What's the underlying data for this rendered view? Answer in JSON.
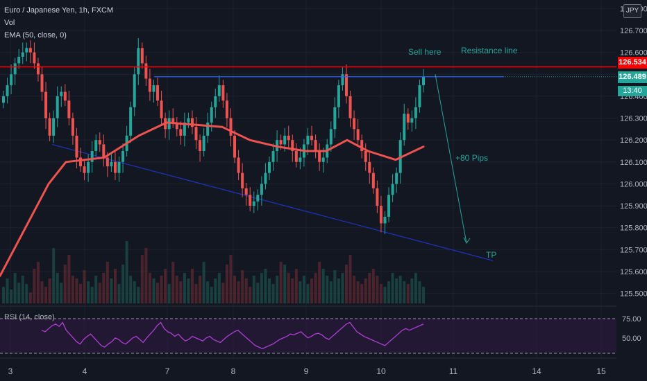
{
  "header": {
    "symbol": "Euro / Japanese Yen, 1h, FXCM",
    "indicator_vol": "Vol",
    "indicator_ema": "EMA (50, close, 0)"
  },
  "currency_badge": "JPY",
  "annotations": {
    "sell_here": "Sell here",
    "resistance": "Resistance line",
    "pips": "+80 Pips",
    "tp": "TP"
  },
  "price_tags": {
    "red_line": "126.534",
    "last": "126.489",
    "countdown": "13:40"
  },
  "rsi_legend": "RSI (14, close)",
  "colors": {
    "background": "#131722",
    "up": "#26a69a",
    "down": "#ef5350",
    "ema": "#ef5350",
    "red_line": "#ff0000",
    "resistance": "#2962ff",
    "support": "#2130b8",
    "rsi": "#b03fd6",
    "annotation": "#26a69a"
  },
  "chart_data": {
    "type": "candlestick",
    "y_ticks": [
      "125.500",
      "125.600",
      "125.700",
      "125.800",
      "125.900",
      "126.000",
      "126.100",
      "126.200",
      "126.300",
      "126.400",
      "126.500",
      "126.600",
      "126.700",
      "126.800"
    ],
    "x_ticks": [
      "3",
      "4",
      "7",
      "8",
      "9",
      "10",
      "11",
      "14",
      "15"
    ],
    "rsi_ticks": [
      "75.00",
      "50.00"
    ],
    "ylim": [
      125.48,
      126.82
    ],
    "horizontal_line": 126.534,
    "resistance_level": 126.489,
    "closes": [
      126.4,
      126.45,
      126.5,
      126.55,
      126.58,
      126.6,
      126.62,
      126.6,
      126.55,
      126.5,
      126.42,
      126.3,
      126.22,
      126.3,
      126.4,
      126.42,
      126.38,
      126.3,
      126.22,
      126.12,
      126.08,
      126.05,
      126.1,
      126.15,
      126.2,
      126.18,
      126.12,
      126.08,
      126.1,
      126.05,
      126.1,
      126.15,
      126.22,
      126.35,
      126.5,
      126.62,
      126.55,
      126.48,
      126.42,
      126.45,
      126.38,
      126.3,
      126.25,
      126.3,
      126.28,
      126.25,
      126.22,
      126.28,
      126.3,
      126.26,
      126.2,
      126.15,
      126.22,
      126.28,
      126.35,
      126.4,
      126.45,
      126.38,
      126.3,
      126.22,
      126.12,
      126.05,
      125.98,
      125.95,
      125.9,
      125.92,
      125.95,
      126.0,
      126.05,
      126.1,
      126.15,
      126.2,
      126.18,
      126.22,
      126.2,
      126.15,
      126.1,
      126.12,
      126.18,
      126.22,
      126.2,
      126.15,
      126.1,
      126.12,
      126.18,
      126.25,
      126.35,
      126.45,
      126.5,
      126.4,
      126.3,
      126.25,
      126.2,
      126.15,
      126.1,
      126.05,
      125.98,
      125.9,
      125.82,
      125.85,
      125.95,
      126.0,
      126.05,
      126.2,
      126.32,
      126.28,
      126.3,
      126.35,
      126.45,
      126.489
    ],
    "ema": [
      [
        0,
        125.58
      ],
      [
        70,
        126.0
      ],
      [
        95,
        126.1
      ],
      [
        150,
        126.12
      ],
      [
        200,
        126.22
      ],
      [
        240,
        126.28
      ],
      [
        280,
        126.27
      ],
      [
        320,
        126.26
      ],
      [
        360,
        126.2
      ],
      [
        400,
        126.17
      ],
      [
        440,
        126.15
      ],
      [
        470,
        126.15
      ],
      [
        500,
        126.2
      ],
      [
        530,
        126.15
      ],
      [
        570,
        126.11
      ],
      [
        610,
        126.17
      ]
    ],
    "resistance_line": [
      [
        222,
        126.489
      ],
      [
        725,
        126.489
      ]
    ],
    "support_line": [
      [
        75,
        126.18
      ],
      [
        710,
        125.65
      ]
    ],
    "arrow": [
      [
        627,
        126.5
      ],
      [
        672,
        125.73
      ]
    ],
    "volumes": [
      12,
      18,
      10,
      22,
      15,
      20,
      14,
      8,
      25,
      30,
      16,
      12,
      18,
      40,
      22,
      15,
      28,
      35,
      20,
      18,
      14,
      24,
      16,
      12,
      20,
      15,
      22,
      30,
      18,
      25,
      14,
      28,
      45,
      20,
      16,
      12,
      35,
      40,
      22,
      18,
      15,
      20,
      25,
      14,
      30,
      20,
      16,
      22,
      18,
      25,
      14,
      20,
      30,
      16,
      12,
      18,
      22,
      15,
      28,
      35,
      20,
      16,
      24,
      18,
      12,
      20,
      15,
      22,
      25,
      18,
      14,
      20,
      30,
      28,
      22,
      18,
      25,
      16,
      20,
      14,
      18,
      22,
      30,
      25,
      20,
      16,
      24,
      18,
      22,
      28,
      35,
      20,
      16,
      14,
      18,
      22,
      25,
      20,
      14,
      12,
      16,
      22,
      18,
      20,
      16,
      14,
      18,
      22,
      16,
      12
    ],
    "rsi": [
      60,
      58,
      62,
      66,
      68,
      65,
      70,
      60,
      55,
      50,
      45,
      42,
      48,
      52,
      55,
      50,
      45,
      40,
      38,
      42,
      45,
      50,
      48,
      44,
      42,
      46,
      50,
      52,
      48,
      44,
      50,
      55,
      60,
      66,
      70,
      62,
      58,
      56,
      52,
      55,
      50,
      46,
      48,
      52,
      50,
      48,
      46,
      50,
      52,
      48,
      46,
      44,
      48,
      52,
      55,
      58,
      60,
      56,
      52,
      48,
      44,
      40,
      38,
      36,
      38,
      40,
      42,
      45,
      48,
      50,
      52,
      55,
      54,
      56,
      58,
      54,
      50,
      52,
      55,
      56,
      54,
      50,
      48,
      52,
      56,
      60,
      64,
      68,
      70,
      64,
      58,
      55,
      52,
      50,
      48,
      46,
      44,
      42,
      40,
      44,
      48,
      52,
      56,
      60,
      62,
      60,
      62,
      64,
      66,
      68
    ]
  }
}
